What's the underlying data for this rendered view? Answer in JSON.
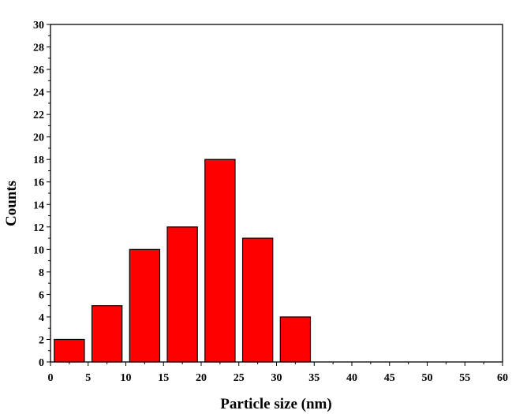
{
  "chart_data": {
    "type": "histogram",
    "x_label": "Particle size (nm)",
    "y_label": "Counts",
    "bins": [
      0,
      5,
      10,
      15,
      20,
      25,
      30,
      35
    ],
    "counts": [
      2,
      5,
      10,
      12,
      18,
      11,
      4
    ],
    "color": "#ff0000",
    "xlim": [
      0,
      60
    ],
    "xticks": [
      0,
      5,
      10,
      15,
      20,
      25,
      30,
      35,
      40,
      45,
      50,
      55,
      60
    ],
    "ylim": [
      0,
      30
    ],
    "yticks": [
      0,
      2,
      4,
      6,
      8,
      10,
      12,
      14,
      16,
      18,
      20,
      22,
      24,
      26,
      28,
      30
    ],
    "grid": false
  }
}
